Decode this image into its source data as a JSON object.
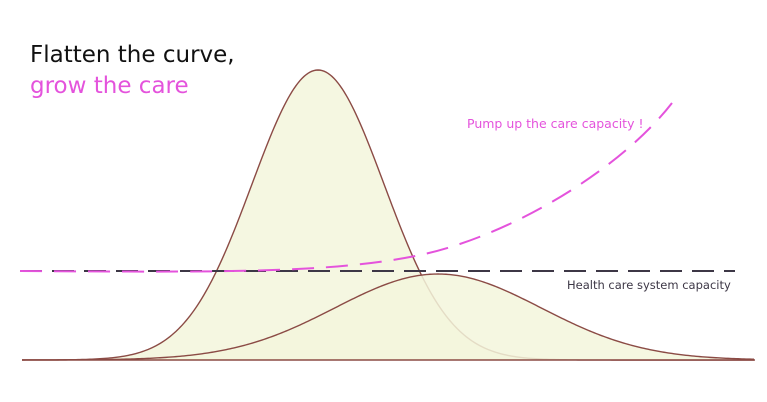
{
  "title": {
    "line1": "Flatten the curve,",
    "line2": "grow the care"
  },
  "annotations": {
    "care_capacity": "Pump up the care capacity !",
    "system_capacity": "Health care system capacity"
  },
  "colors": {
    "title": "#111111",
    "accent": "#e453dc",
    "curve_stroke": "#8b4b45",
    "curve_fill": "#f3f6dc",
    "capacity_line": "#3d3746",
    "baseline": "#8b4b45"
  },
  "icons": []
}
